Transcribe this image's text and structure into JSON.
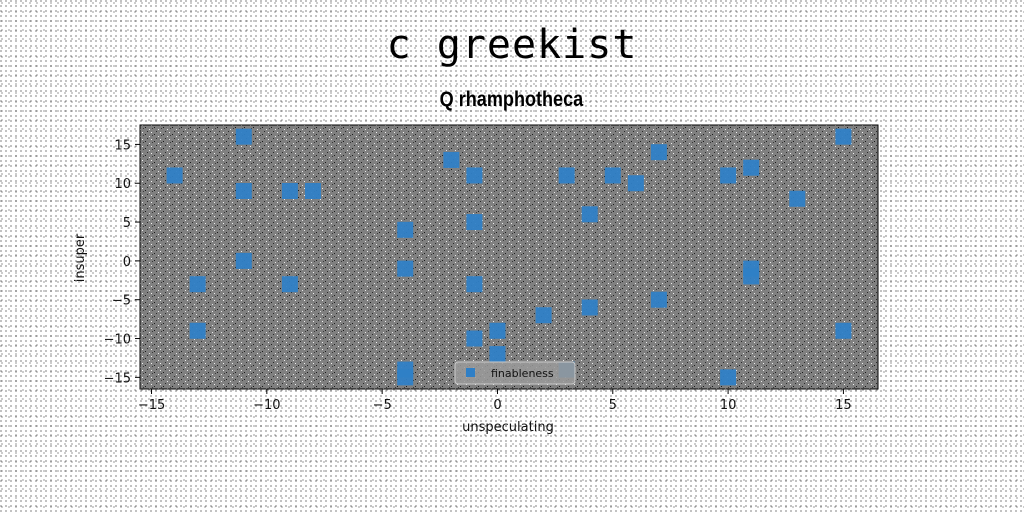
{
  "figure": {
    "suptitle": "c greekist"
  },
  "chart_data": {
    "type": "scatter",
    "title": "Q rhamphotheca",
    "xlabel": "unspeculating",
    "ylabel": "insuper",
    "xlim": [
      -15.5,
      16.5
    ],
    "ylim": [
      -16.5,
      17.5
    ],
    "xticks": [
      -15,
      -10,
      -5,
      0,
      5,
      10,
      15
    ],
    "yticks": [
      -15,
      -10,
      -5,
      0,
      5,
      10,
      15
    ],
    "tick_labels_x": [
      "−15",
      "−10",
      "−5",
      "0",
      "5",
      "10",
      "15"
    ],
    "tick_labels_y": [
      "−15",
      "−10",
      "−5",
      "0",
      "5",
      "10",
      "15"
    ],
    "grid": false,
    "legend_position": "lower-center",
    "series": [
      {
        "name": "finableness",
        "color": "#2f7fc6",
        "marker": "square",
        "points": [
          [
            -14,
            11
          ],
          [
            -13,
            -3
          ],
          [
            -13,
            -9
          ],
          [
            -11,
            16
          ],
          [
            -11,
            9
          ],
          [
            -11,
            0
          ],
          [
            -9,
            9
          ],
          [
            -9,
            -3
          ],
          [
            -8,
            9
          ],
          [
            -4,
            4
          ],
          [
            -4,
            -1
          ],
          [
            -4,
            -14
          ],
          [
            -4,
            -15
          ],
          [
            -2,
            13
          ],
          [
            -1,
            11
          ],
          [
            -1,
            5
          ],
          [
            -1,
            -3
          ],
          [
            -1,
            -10
          ],
          [
            0,
            -9
          ],
          [
            0,
            -12
          ],
          [
            2,
            -7
          ],
          [
            3,
            11
          ],
          [
            3,
            -14
          ],
          [
            4,
            6
          ],
          [
            4,
            -6
          ],
          [
            5,
            11
          ],
          [
            6,
            10
          ],
          [
            7,
            14
          ],
          [
            7,
            -5
          ],
          [
            10,
            11
          ],
          [
            10,
            -15
          ],
          [
            11,
            12
          ],
          [
            11,
            -1
          ],
          [
            11,
            -2
          ],
          [
            13,
            8
          ],
          [
            15,
            16
          ],
          [
            15,
            -9
          ]
        ]
      }
    ]
  }
}
